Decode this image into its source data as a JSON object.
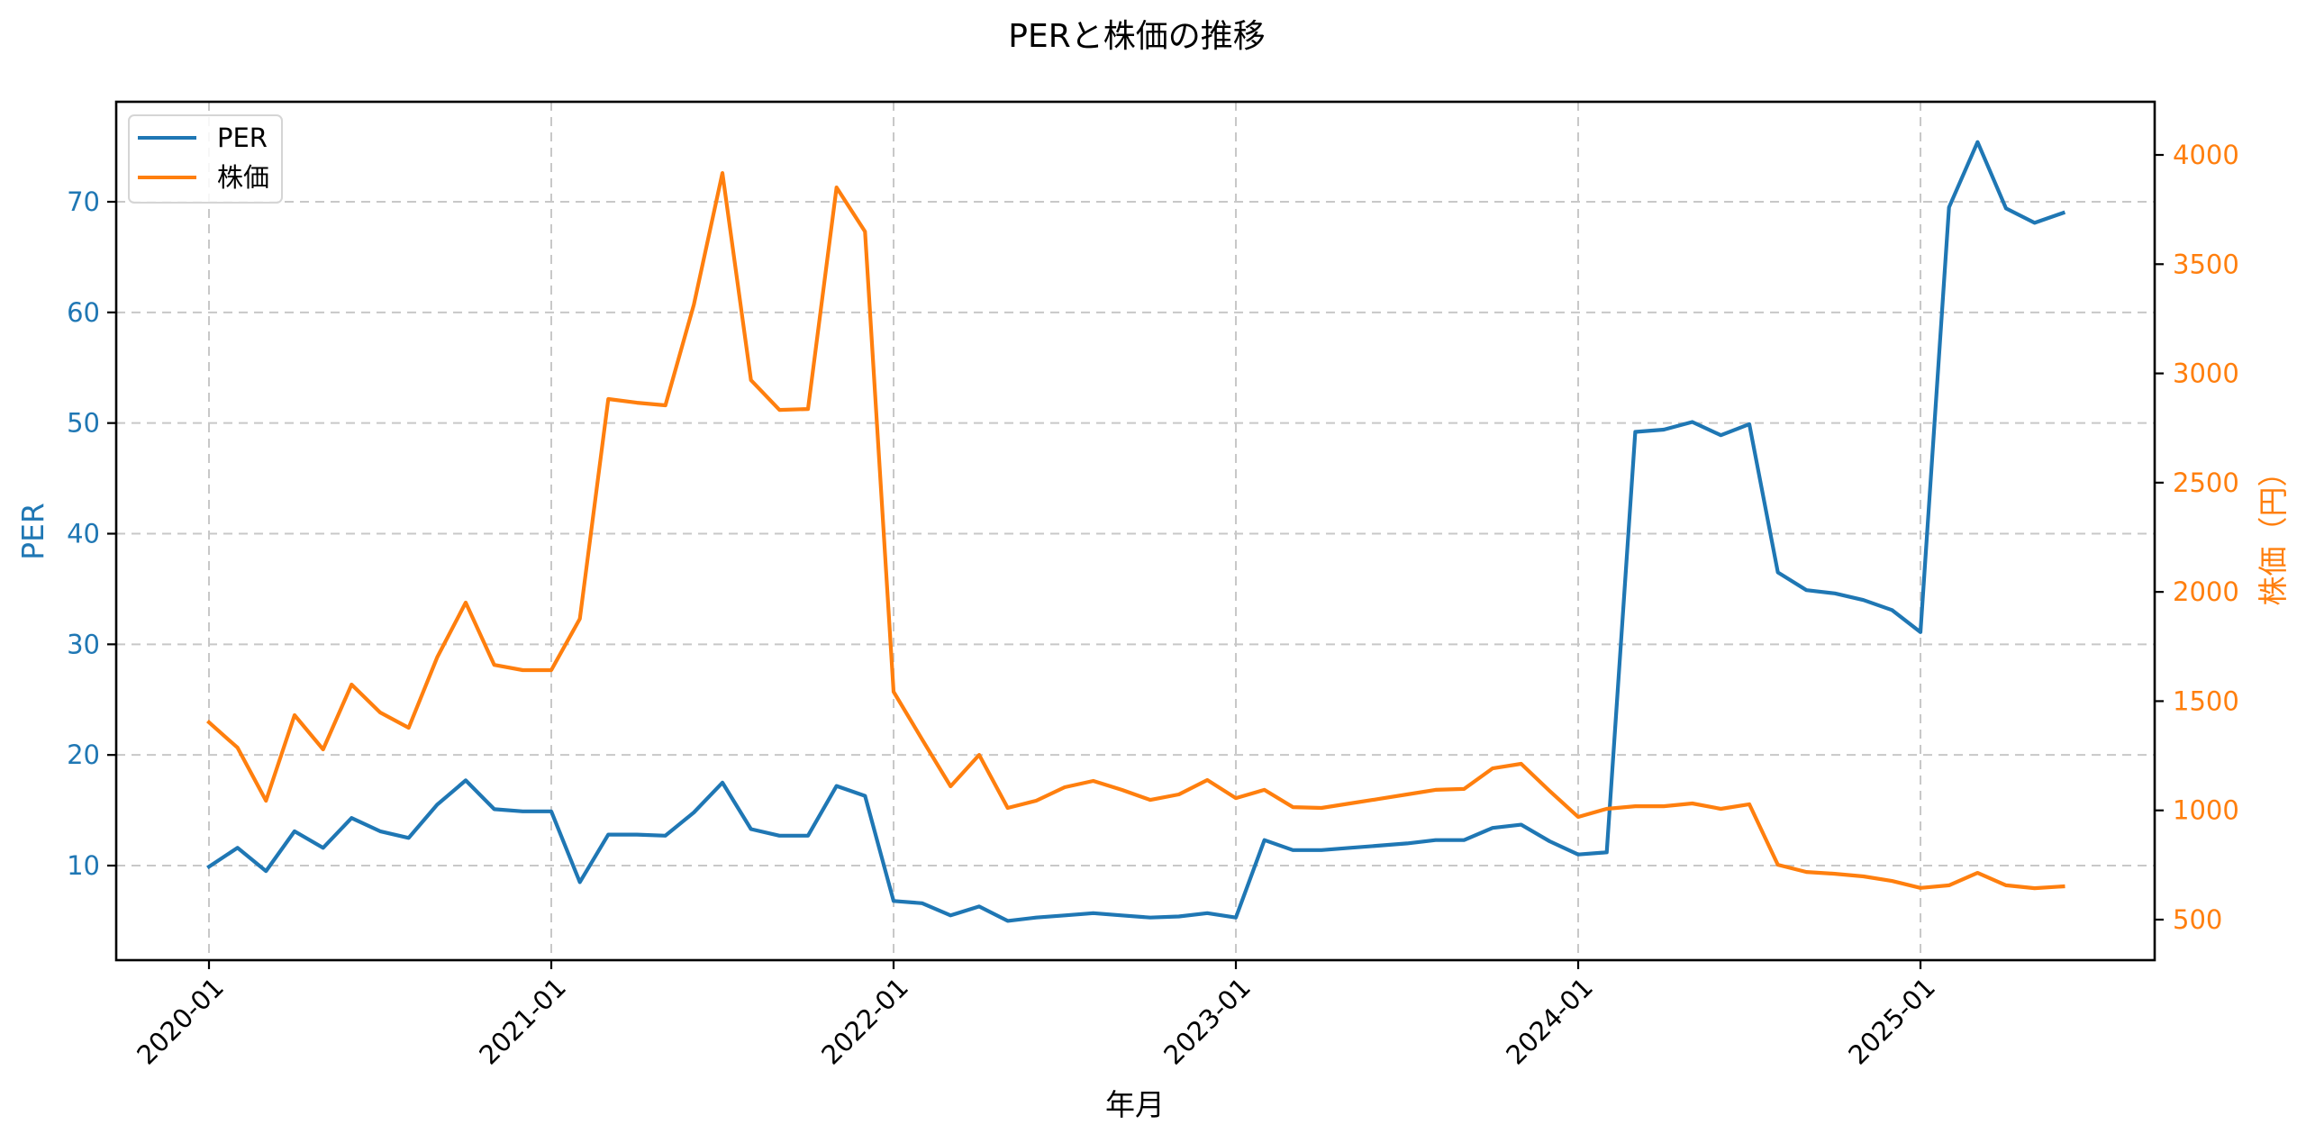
{
  "chart_data": {
    "type": "line",
    "title": "PERと株価の推移",
    "xlabel": "年月",
    "ylabel": "PER",
    "ylabel_right": "株価（円）",
    "x_tick_labels": [
      "2020-01",
      "2021-01",
      "2022-01",
      "2023-01",
      "2024-01",
      "2025-01"
    ],
    "y_ticks_left": [
      10,
      20,
      30,
      40,
      50,
      60,
      70
    ],
    "y_ticks_right": [
      500,
      1000,
      1500,
      2000,
      2500,
      3000,
      3500,
      4000
    ],
    "ylim_left": [
      1.6,
      79.2
    ],
    "ylim_right": [
      320,
      4250
    ],
    "grid": true,
    "legend_position": "upper left",
    "x": [
      "2020-01",
      "2020-02",
      "2020-03",
      "2020-04",
      "2020-05",
      "2020-06",
      "2020-07",
      "2020-08",
      "2020-09",
      "2020-10",
      "2020-11",
      "2020-12",
      "2021-01",
      "2021-02",
      "2021-03",
      "2021-04",
      "2021-05",
      "2021-06",
      "2021-07",
      "2021-08",
      "2021-09",
      "2021-10",
      "2021-11",
      "2021-12",
      "2022-01",
      "2022-02",
      "2022-03",
      "2022-04",
      "2022-05",
      "2022-06",
      "2022-07",
      "2022-08",
      "2022-09",
      "2022-10",
      "2022-11",
      "2022-12",
      "2023-01",
      "2023-02",
      "2023-03",
      "2023-04",
      "2023-05",
      "2023-06",
      "2023-07",
      "2023-08",
      "2023-09",
      "2023-10",
      "2023-11",
      "2023-12",
      "2024-01",
      "2024-02",
      "2024-03",
      "2024-04",
      "2024-05",
      "2024-06",
      "2024-07",
      "2024-08",
      "2024-09",
      "2024-10",
      "2024-11",
      "2024-12",
      "2025-01",
      "2025-02",
      "2025-03",
      "2025-04",
      "2025-05",
      "2025-06"
    ],
    "series": [
      {
        "name": "PER",
        "axis": "left",
        "color": "#1f77b4",
        "values": [
          9.9,
          11.6,
          9.5,
          13.1,
          11.6,
          14.3,
          13.1,
          12.5,
          15.5,
          17.7,
          15.1,
          14.9,
          14.9,
          8.5,
          12.8,
          12.8,
          12.7,
          14.8,
          17.5,
          13.3,
          12.7,
          12.7,
          17.2,
          16.3,
          6.8,
          6.6,
          5.5,
          6.3,
          5.0,
          5.3,
          5.5,
          5.7,
          5.5,
          5.3,
          5.4,
          5.7,
          5.3,
          12.3,
          11.4,
          11.4,
          11.6,
          11.8,
          12.0,
          12.3,
          12.3,
          13.4,
          13.7,
          12.2,
          11.0,
          11.2,
          49.2,
          49.4,
          50.1,
          48.9,
          49.9,
          36.5,
          34.9,
          34.6,
          34.0,
          33.1,
          31.1,
          69.5,
          75.4,
          69.4,
          68.1,
          69.0
        ]
      },
      {
        "name": "株価",
        "axis": "right",
        "color": "#ff7f0e",
        "values": [
          1403,
          1287,
          1044,
          1436,
          1279,
          1576,
          1448,
          1378,
          1700,
          1951,
          1666,
          1642,
          1642,
          1877,
          2883,
          2866,
          2854,
          3315,
          3917,
          2969,
          2833,
          2837,
          3851,
          3649,
          1543,
          1325,
          1110,
          1254,
          1011,
          1044,
          1106,
          1135,
          1094,
          1048,
          1073,
          1139,
          1056,
          1094,
          1015,
          1011,
          1032,
          1052,
          1073,
          1094,
          1098,
          1192,
          1213,
          1089,
          970,
          1007,
          1019,
          1019,
          1032,
          1007,
          1028,
          751,
          718,
          710,
          698,
          677,
          645,
          657,
          714,
          657,
          644,
          652
        ]
      }
    ]
  },
  "legend": {
    "items": [
      {
        "label": "PER",
        "color": "#1f77b4"
      },
      {
        "label": "株価",
        "color": "#ff7f0e"
      }
    ]
  },
  "colors": {
    "per": "#1f77b4",
    "price": "#ff7f0e",
    "grid": "#c8c8c8"
  }
}
